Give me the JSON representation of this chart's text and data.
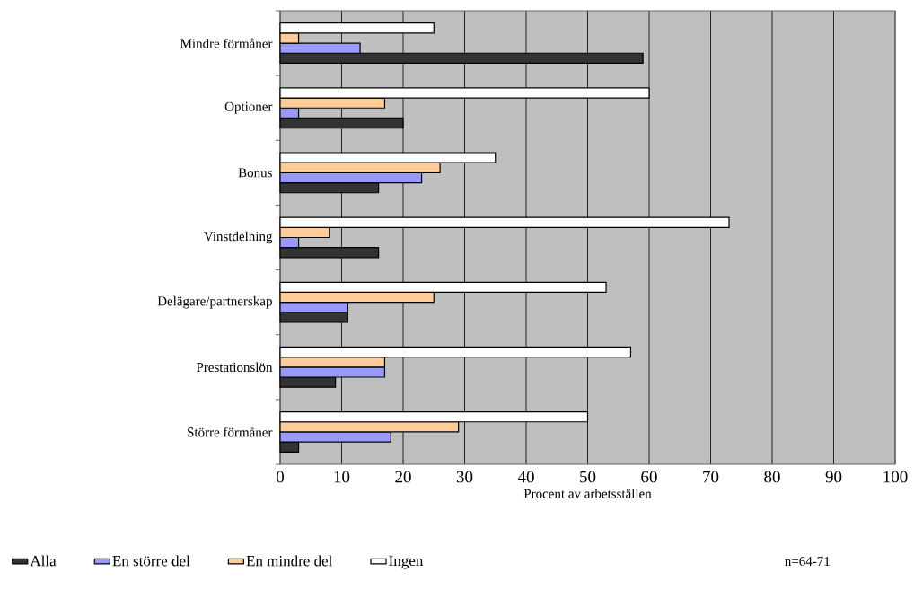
{
  "chart_data": {
    "type": "bar",
    "orientation": "horizontal",
    "categories": [
      "Mindre förmåner",
      "Optioner",
      "Bonus",
      "Vinstdelning",
      "Delägare/partnerskap",
      "Prestationslön",
      "Större förmåner"
    ],
    "series": [
      {
        "name": "Alla",
        "color": "#333333",
        "values": [
          59,
          20,
          16,
          16,
          11,
          9,
          3
        ]
      },
      {
        "name": "En större del",
        "color": "#9999ff",
        "values": [
          13,
          3,
          23,
          3,
          11,
          17,
          18
        ]
      },
      {
        "name": "En mindre del",
        "color": "#ffcc99",
        "values": [
          3,
          17,
          26,
          8,
          25,
          17,
          29
        ]
      },
      {
        "name": "Ingen",
        "color": "#ffffff",
        "values": [
          25,
          60,
          35,
          73,
          53,
          57,
          50
        ]
      }
    ],
    "xlabel": "Procent av arbetsställen",
    "xlim": [
      0,
      100
    ],
    "xticks": [
      0,
      10,
      20,
      30,
      40,
      50,
      60,
      70,
      80,
      90,
      100
    ],
    "grid": "x",
    "legend": "bottom",
    "annotations": [
      "n=64-71"
    ]
  }
}
